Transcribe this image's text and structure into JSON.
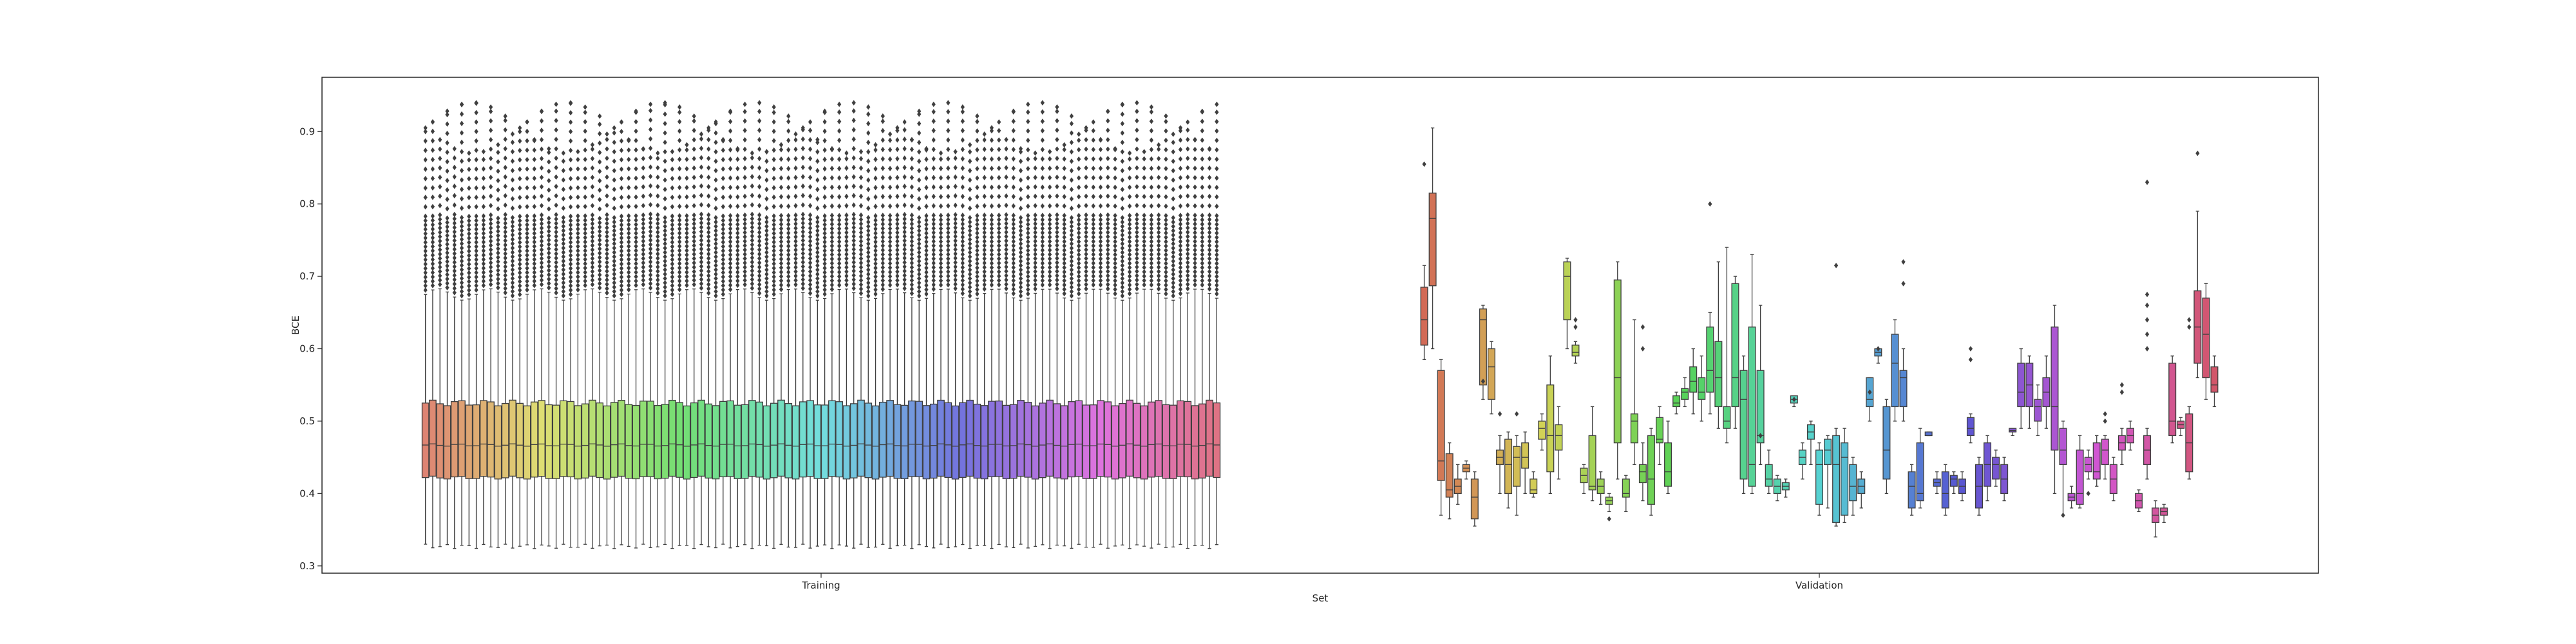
{
  "chart_data": {
    "type": "box",
    "title": "",
    "xlabel": "Set",
    "ylabel": "BCE",
    "ylim": [
      0.29,
      0.975
    ],
    "yticks": [
      0.3,
      0.4,
      0.5,
      0.6,
      0.7,
      0.8,
      0.9
    ],
    "categories": [
      "Training",
      "Validation"
    ],
    "grid": false,
    "legend": "none",
    "groups": [
      {
        "name": "Training",
        "n_boxes": 110,
        "q1": 0.422,
        "median": 0.467,
        "q3": 0.525,
        "whisker_low": 0.327,
        "whisker_high": 0.675,
        "outlier_max_range": [
          0.87,
          0.94
        ]
      },
      {
        "name": "Validation",
        "boxes": [
          {
            "q1": 0.605,
            "med": 0.64,
            "q3": 0.685,
            "lo": 0.585,
            "hi": 0.715,
            "out": [
              0.855
            ]
          },
          {
            "q1": 0.687,
            "med": 0.78,
            "q3": 0.815,
            "lo": 0.6,
            "hi": 0.905,
            "out": []
          },
          {
            "q1": 0.418,
            "med": 0.445,
            "q3": 0.57,
            "lo": 0.37,
            "hi": 0.585,
            "out": []
          },
          {
            "q1": 0.395,
            "med": 0.405,
            "q3": 0.455,
            "lo": 0.365,
            "hi": 0.47,
            "out": []
          },
          {
            "q1": 0.4,
            "med": 0.41,
            "q3": 0.42,
            "lo": 0.385,
            "hi": 0.44,
            "out": []
          },
          {
            "q1": 0.43,
            "med": 0.435,
            "q3": 0.44,
            "lo": 0.42,
            "hi": 0.445,
            "out": []
          },
          {
            "q1": 0.365,
            "med": 0.395,
            "q3": 0.42,
            "lo": 0.355,
            "hi": 0.43,
            "out": []
          },
          {
            "q1": 0.55,
            "med": 0.64,
            "q3": 0.655,
            "lo": 0.53,
            "hi": 0.66,
            "out": [
              0.555
            ]
          },
          {
            "q1": 0.53,
            "med": 0.575,
            "q3": 0.6,
            "lo": 0.51,
            "hi": 0.61,
            "out": []
          },
          {
            "q1": 0.44,
            "med": 0.45,
            "q3": 0.46,
            "lo": 0.4,
            "hi": 0.48,
            "out": [
              0.51
            ]
          },
          {
            "q1": 0.4,
            "med": 0.44,
            "q3": 0.475,
            "lo": 0.38,
            "hi": 0.485,
            "out": []
          },
          {
            "q1": 0.41,
            "med": 0.45,
            "q3": 0.465,
            "lo": 0.37,
            "hi": 0.48,
            "out": [
              0.51
            ]
          },
          {
            "q1": 0.435,
            "med": 0.45,
            "q3": 0.47,
            "lo": 0.4,
            "hi": 0.485,
            "out": []
          },
          {
            "q1": 0.4,
            "med": 0.405,
            "q3": 0.42,
            "lo": 0.395,
            "hi": 0.43,
            "out": []
          },
          {
            "q1": 0.475,
            "med": 0.49,
            "q3": 0.5,
            "lo": 0.46,
            "hi": 0.51,
            "out": []
          },
          {
            "q1": 0.43,
            "med": 0.48,
            "q3": 0.55,
            "lo": 0.4,
            "hi": 0.59,
            "out": []
          },
          {
            "q1": 0.46,
            "med": 0.48,
            "q3": 0.495,
            "lo": 0.42,
            "hi": 0.52,
            "out": []
          },
          {
            "q1": 0.64,
            "med": 0.7,
            "q3": 0.72,
            "lo": 0.6,
            "hi": 0.725,
            "out": []
          },
          {
            "q1": 0.59,
            "med": 0.595,
            "q3": 0.605,
            "lo": 0.58,
            "hi": 0.61,
            "out": [
              0.63,
              0.64
            ]
          },
          {
            "q1": 0.415,
            "med": 0.425,
            "q3": 0.435,
            "lo": 0.4,
            "hi": 0.44,
            "out": []
          },
          {
            "q1": 0.405,
            "med": 0.41,
            "q3": 0.48,
            "lo": 0.39,
            "hi": 0.52,
            "out": []
          },
          {
            "q1": 0.4,
            "med": 0.41,
            "q3": 0.42,
            "lo": 0.385,
            "hi": 0.43,
            "out": []
          },
          {
            "q1": 0.385,
            "med": 0.39,
            "q3": 0.395,
            "lo": 0.375,
            "hi": 0.4,
            "out": [
              0.365
            ]
          },
          {
            "q1": 0.47,
            "med": 0.56,
            "q3": 0.695,
            "lo": 0.42,
            "hi": 0.72,
            "out": []
          },
          {
            "q1": 0.395,
            "med": 0.4,
            "q3": 0.42,
            "lo": 0.375,
            "hi": 0.425,
            "out": []
          },
          {
            "q1": 0.47,
            "med": 0.5,
            "q3": 0.51,
            "lo": 0.44,
            "hi": 0.64,
            "out": []
          },
          {
            "q1": 0.415,
            "med": 0.43,
            "q3": 0.44,
            "lo": 0.39,
            "hi": 0.47,
            "out": [
              0.63,
              0.6
            ]
          },
          {
            "q1": 0.385,
            "med": 0.42,
            "q3": 0.48,
            "lo": 0.37,
            "hi": 0.49,
            "out": []
          },
          {
            "q1": 0.47,
            "med": 0.475,
            "q3": 0.505,
            "lo": 0.44,
            "hi": 0.52,
            "out": []
          },
          {
            "q1": 0.41,
            "med": 0.43,
            "q3": 0.47,
            "lo": 0.4,
            "hi": 0.5,
            "out": []
          },
          {
            "q1": 0.52,
            "med": 0.525,
            "q3": 0.535,
            "lo": 0.51,
            "hi": 0.54,
            "out": []
          },
          {
            "q1": 0.53,
            "med": 0.54,
            "q3": 0.545,
            "lo": 0.52,
            "hi": 0.56,
            "out": []
          },
          {
            "q1": 0.54,
            "med": 0.555,
            "q3": 0.575,
            "lo": 0.51,
            "hi": 0.6,
            "out": []
          },
          {
            "q1": 0.53,
            "med": 0.54,
            "q3": 0.56,
            "lo": 0.5,
            "hi": 0.59,
            "out": []
          },
          {
            "q1": 0.54,
            "med": 0.57,
            "q3": 0.63,
            "lo": 0.51,
            "hi": 0.65,
            "out": [
              0.8
            ]
          },
          {
            "q1": 0.52,
            "med": 0.56,
            "q3": 0.61,
            "lo": 0.49,
            "hi": 0.72,
            "out": []
          },
          {
            "q1": 0.49,
            "med": 0.5,
            "q3": 0.52,
            "lo": 0.47,
            "hi": 0.74,
            "out": []
          },
          {
            "q1": 0.52,
            "med": 0.56,
            "q3": 0.69,
            "lo": 0.49,
            "hi": 0.7,
            "out": []
          },
          {
            "q1": 0.42,
            "med": 0.53,
            "q3": 0.57,
            "lo": 0.4,
            "hi": 0.59,
            "out": []
          },
          {
            "q1": 0.41,
            "med": 0.44,
            "q3": 0.63,
            "lo": 0.4,
            "hi": 0.73,
            "out": []
          },
          {
            "q1": 0.47,
            "med": 0.48,
            "q3": 0.57,
            "lo": 0.44,
            "hi": 0.66,
            "out": [
              0.48
            ]
          },
          {
            "q1": 0.41,
            "med": 0.42,
            "q3": 0.44,
            "lo": 0.4,
            "hi": 0.46,
            "out": []
          },
          {
            "q1": 0.4,
            "med": 0.41,
            "q3": 0.42,
            "lo": 0.39,
            "hi": 0.425,
            "out": []
          },
          {
            "q1": 0.405,
            "med": 0.41,
            "q3": 0.415,
            "lo": 0.395,
            "hi": 0.42,
            "out": []
          },
          {
            "q1": 0.525,
            "med": 0.53,
            "q3": 0.535,
            "lo": 0.52,
            "hi": 0.535,
            "out": [
              0.53
            ]
          },
          {
            "q1": 0.44,
            "med": 0.45,
            "q3": 0.46,
            "lo": 0.42,
            "hi": 0.47,
            "out": []
          },
          {
            "q1": 0.475,
            "med": 0.485,
            "q3": 0.495,
            "lo": 0.44,
            "hi": 0.5,
            "out": []
          },
          {
            "q1": 0.385,
            "med": 0.44,
            "q3": 0.46,
            "lo": 0.37,
            "hi": 0.47,
            "out": []
          },
          {
            "q1": 0.44,
            "med": 0.46,
            "q3": 0.475,
            "lo": 0.38,
            "hi": 0.48,
            "out": []
          },
          {
            "q1": 0.36,
            "med": 0.44,
            "q3": 0.48,
            "lo": 0.355,
            "hi": 0.49,
            "out": [
              0.715
            ]
          },
          {
            "q1": 0.37,
            "med": 0.45,
            "q3": 0.47,
            "lo": 0.36,
            "hi": 0.49,
            "out": []
          },
          {
            "q1": 0.39,
            "med": 0.41,
            "q3": 0.44,
            "lo": 0.37,
            "hi": 0.45,
            "out": []
          },
          {
            "q1": 0.4,
            "med": 0.41,
            "q3": 0.42,
            "lo": 0.38,
            "hi": 0.43,
            "out": []
          },
          {
            "q1": 0.52,
            "med": 0.53,
            "q3": 0.56,
            "lo": 0.5,
            "hi": 0.56,
            "out": [
              0.54
            ]
          },
          {
            "q1": 0.59,
            "med": 0.595,
            "q3": 0.6,
            "lo": 0.58,
            "hi": 0.6,
            "out": [
              0.6
            ]
          },
          {
            "q1": 0.42,
            "med": 0.46,
            "q3": 0.52,
            "lo": 0.4,
            "hi": 0.53,
            "out": []
          },
          {
            "q1": 0.52,
            "med": 0.58,
            "q3": 0.62,
            "lo": 0.5,
            "hi": 0.64,
            "out": []
          },
          {
            "q1": 0.52,
            "med": 0.56,
            "q3": 0.57,
            "lo": 0.5,
            "hi": 0.6,
            "out": [
              0.69,
              0.72
            ]
          },
          {
            "q1": 0.38,
            "med": 0.41,
            "q3": 0.43,
            "lo": 0.37,
            "hi": 0.44,
            "out": []
          },
          {
            "q1": 0.39,
            "med": 0.4,
            "q3": 0.47,
            "lo": 0.38,
            "hi": 0.49,
            "out": []
          },
          {
            "q1": 0.48,
            "med": 0.48,
            "q3": 0.485,
            "lo": 0.48,
            "hi": 0.485,
            "out": []
          },
          {
            "q1": 0.41,
            "med": 0.415,
            "q3": 0.42,
            "lo": 0.4,
            "hi": 0.43,
            "out": []
          },
          {
            "q1": 0.38,
            "med": 0.4,
            "q3": 0.43,
            "lo": 0.37,
            "hi": 0.44,
            "out": []
          },
          {
            "q1": 0.41,
            "med": 0.42,
            "q3": 0.425,
            "lo": 0.4,
            "hi": 0.43,
            "out": []
          },
          {
            "q1": 0.4,
            "med": 0.41,
            "q3": 0.42,
            "lo": 0.39,
            "hi": 0.43,
            "out": []
          },
          {
            "q1": 0.48,
            "med": 0.49,
            "q3": 0.505,
            "lo": 0.47,
            "hi": 0.51,
            "out": [
              0.6,
              0.585
            ]
          },
          {
            "q1": 0.38,
            "med": 0.41,
            "q3": 0.44,
            "lo": 0.37,
            "hi": 0.45,
            "out": []
          },
          {
            "q1": 0.41,
            "med": 0.44,
            "q3": 0.47,
            "lo": 0.39,
            "hi": 0.48,
            "out": []
          },
          {
            "q1": 0.42,
            "med": 0.44,
            "q3": 0.45,
            "lo": 0.41,
            "hi": 0.46,
            "out": []
          },
          {
            "q1": 0.4,
            "med": 0.42,
            "q3": 0.44,
            "lo": 0.39,
            "hi": 0.45,
            "out": []
          },
          {
            "q1": 0.485,
            "med": 0.487,
            "q3": 0.49,
            "lo": 0.48,
            "hi": 0.49,
            "out": []
          },
          {
            "q1": 0.52,
            "med": 0.54,
            "q3": 0.58,
            "lo": 0.49,
            "hi": 0.6,
            "out": []
          },
          {
            "q1": 0.52,
            "med": 0.55,
            "q3": 0.58,
            "lo": 0.49,
            "hi": 0.59,
            "out": []
          },
          {
            "q1": 0.5,
            "med": 0.52,
            "q3": 0.53,
            "lo": 0.48,
            "hi": 0.55,
            "out": []
          },
          {
            "q1": 0.52,
            "med": 0.54,
            "q3": 0.56,
            "lo": 0.49,
            "hi": 0.59,
            "out": []
          },
          {
            "q1": 0.46,
            "med": 0.52,
            "q3": 0.63,
            "lo": 0.4,
            "hi": 0.66,
            "out": []
          },
          {
            "q1": 0.44,
            "med": 0.46,
            "q3": 0.49,
            "lo": 0.37,
            "hi": 0.5,
            "out": [
              0.37
            ]
          },
          {
            "q1": 0.39,
            "med": 0.395,
            "q3": 0.4,
            "lo": 0.38,
            "hi": 0.41,
            "out": []
          },
          {
            "q1": 0.385,
            "med": 0.4,
            "q3": 0.46,
            "lo": 0.38,
            "hi": 0.48,
            "out": []
          },
          {
            "q1": 0.43,
            "med": 0.44,
            "q3": 0.45,
            "lo": 0.42,
            "hi": 0.46,
            "out": [
              0.4
            ]
          },
          {
            "q1": 0.42,
            "med": 0.43,
            "q3": 0.47,
            "lo": 0.41,
            "hi": 0.48,
            "out": []
          },
          {
            "q1": 0.44,
            "med": 0.46,
            "q3": 0.475,
            "lo": 0.42,
            "hi": 0.48,
            "out": [
              0.5,
              0.51
            ]
          },
          {
            "q1": 0.4,
            "med": 0.42,
            "q3": 0.44,
            "lo": 0.39,
            "hi": 0.45,
            "out": []
          },
          {
            "q1": 0.46,
            "med": 0.47,
            "q3": 0.48,
            "lo": 0.44,
            "hi": 0.49,
            "out": [
              0.55,
              0.54
            ]
          },
          {
            "q1": 0.47,
            "med": 0.48,
            "q3": 0.49,
            "lo": 0.46,
            "hi": 0.5,
            "out": []
          },
          {
            "q1": 0.38,
            "med": 0.39,
            "q3": 0.4,
            "lo": 0.375,
            "hi": 0.405,
            "out": []
          },
          {
            "q1": 0.44,
            "med": 0.46,
            "q3": 0.48,
            "lo": 0.42,
            "hi": 0.49,
            "out": [
              0.83,
              0.675,
              0.66,
              0.64,
              0.62,
              0.6
            ]
          },
          {
            "q1": 0.36,
            "med": 0.37,
            "q3": 0.38,
            "lo": 0.34,
            "hi": 0.39,
            "out": []
          },
          {
            "q1": 0.37,
            "med": 0.375,
            "q3": 0.38,
            "lo": 0.36,
            "hi": 0.385,
            "out": []
          },
          {
            "q1": 0.48,
            "med": 0.5,
            "q3": 0.58,
            "lo": 0.47,
            "hi": 0.59,
            "out": []
          },
          {
            "q1": 0.49,
            "med": 0.495,
            "q3": 0.5,
            "lo": 0.48,
            "hi": 0.505,
            "out": []
          },
          {
            "q1": 0.43,
            "med": 0.47,
            "q3": 0.51,
            "lo": 0.42,
            "hi": 0.52,
            "out": [
              0.64,
              0.63
            ]
          },
          {
            "q1": 0.58,
            "med": 0.63,
            "q3": 0.68,
            "lo": 0.56,
            "hi": 0.79,
            "out": [
              0.87
            ]
          },
          {
            "q1": 0.56,
            "med": 0.62,
            "q3": 0.67,
            "lo": 0.53,
            "hi": 0.69,
            "out": []
          },
          {
            "q1": 0.54,
            "med": 0.55,
            "q3": 0.575,
            "lo": 0.52,
            "hi": 0.59,
            "out": []
          }
        ]
      }
    ]
  },
  "colors": {
    "text": "#262626",
    "axes": "#262626",
    "box_edge": "#3f3f3f",
    "palette_seed": "husl"
  }
}
